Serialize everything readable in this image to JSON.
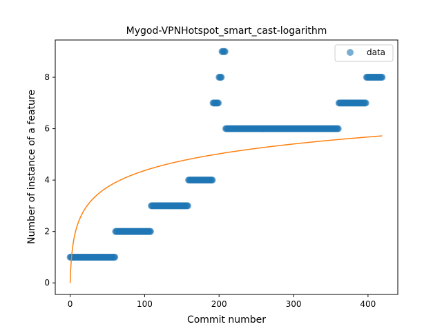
{
  "chart_data": {
    "type": "scatter",
    "title": "Mygod-VPNHotspot_smart_cast-logarithm",
    "xlabel": "Commit number",
    "ylabel": "Number of instance of a feature",
    "xlim": [
      -20,
      440
    ],
    "ylim": [
      -0.45,
      9.45
    ],
    "x_ticks": [
      0,
      100,
      200,
      300,
      400
    ],
    "y_ticks": [
      0,
      2,
      4,
      6,
      8
    ],
    "legend": {
      "placement": "top-right",
      "entries": [
        "data"
      ]
    },
    "colors": {
      "data": "#1f77b4",
      "fit": "#ff7f0e"
    },
    "series": [
      {
        "name": "data",
        "kind": "scatter",
        "segments": [
          {
            "x_start": 0,
            "x_end": 60,
            "y": 1
          },
          {
            "x_start": 61,
            "x_end": 108,
            "y": 2
          },
          {
            "x_start": 109,
            "x_end": 158,
            "y": 3
          },
          {
            "x_start": 159,
            "x_end": 191,
            "y": 4
          },
          {
            "x_start": 192,
            "x_end": 199,
            "y": 7
          },
          {
            "x_start": 200,
            "x_end": 203,
            "y": 8
          },
          {
            "x_start": 204,
            "x_end": 208,
            "y": 9
          },
          {
            "x_start": 209,
            "x_end": 360,
            "y": 6
          },
          {
            "x_start": 361,
            "x_end": 397,
            "y": 7
          },
          {
            "x_start": 398,
            "x_end": 419,
            "y": 8
          }
        ]
      },
      {
        "kind": "line",
        "function": "logarithm",
        "coefficients": {
          "a": 0.947,
          "b": 1
        },
        "x_range": [
          0,
          419
        ]
      }
    ]
  }
}
